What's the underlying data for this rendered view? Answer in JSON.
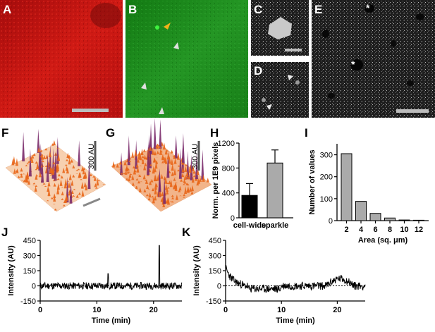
{
  "panels": {
    "A": "A",
    "B": "B",
    "C": "C",
    "D": "D",
    "E": "E",
    "F": "F",
    "G": "G",
    "H": "H",
    "I": "I",
    "J": "J",
    "K": "K"
  },
  "images": {
    "A": {
      "description_color": "#cc1010"
    },
    "B": {
      "description_color": "#1f8a1f"
    },
    "C": {
      "description_color": "#bdbdbd"
    },
    "D": {
      "description_color": "#8a8a8a"
    },
    "E": {
      "asterisk_1": "*",
      "asterisk_2": "*"
    }
  },
  "surface_plots": {
    "F_scale": "300 AU",
    "G_scale": "300 AU"
  },
  "chart_data": [
    {
      "id": "H",
      "type": "bar",
      "categories": [
        "cell-wide",
        "sparkle"
      ],
      "values": [
        360,
        880
      ],
      "errors": [
        190,
        210
      ],
      "bar_colors": [
        "#000000",
        "#aaaaaa"
      ],
      "ylabel": "Norm. per 1E9 pixels",
      "ylim": [
        0,
        1200
      ],
      "yticks": [
        "0",
        "400",
        "800",
        "1200"
      ]
    },
    {
      "id": "I",
      "type": "bar",
      "categories": [
        "2",
        "4",
        "6",
        "8",
        "10",
        "12"
      ],
      "values": [
        305,
        88,
        33,
        12,
        3,
        2
      ],
      "xlabel": "Area (sq. μm)",
      "ylabel": "Number of values",
      "ylim": [
        0,
        350
      ],
      "yticks": [
        "0",
        "100",
        "200",
        "300"
      ]
    },
    {
      "id": "J",
      "type": "line",
      "xlabel": "Time (min)",
      "ylabel": "Intensity (AU)",
      "xlim": [
        0,
        25
      ],
      "ylim": [
        -150,
        450
      ],
      "xticks": [
        "0",
        "10",
        "20"
      ],
      "yticks": [
        "450",
        "300",
        "150",
        "0",
        "-150"
      ],
      "spikes": [
        {
          "x": 12,
          "y": 120
        },
        {
          "x": 21,
          "y": 400
        }
      ]
    },
    {
      "id": "K",
      "type": "line",
      "xlabel": "Time (min)",
      "ylabel": "Intensity (AU)",
      "xlim": [
        0,
        25
      ],
      "ylim": [
        -150,
        450
      ],
      "xticks": [
        "0",
        "10",
        "20"
      ],
      "yticks": [
        "450",
        "300",
        "150",
        "0",
        "-150"
      ]
    }
  ]
}
